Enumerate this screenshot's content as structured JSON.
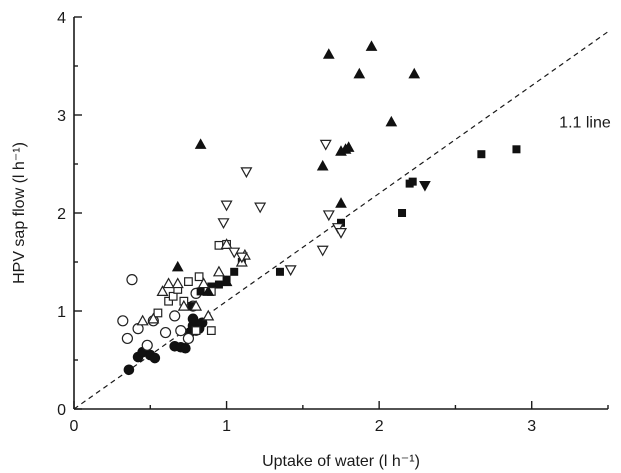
{
  "chart_data": {
    "type": "scatter",
    "title": "",
    "xlabel": "Uptake of water (l h⁻¹)",
    "ylabel": "HPV sap flow (l h⁻¹)",
    "xlim": [
      0,
      3.5
    ],
    "ylim": [
      0,
      4
    ],
    "x_ticks": [
      0,
      1,
      2,
      3
    ],
    "y_ticks": [
      0,
      1,
      2,
      3,
      4
    ],
    "x_minor_step": 0.5,
    "y_minor_step": 0.5,
    "grid": false,
    "reference_line": {
      "slope": 1.1,
      "label": "1.1 line"
    },
    "series": [
      {
        "marker": "filled-circle",
        "points": [
          [
            0.36,
            0.4
          ],
          [
            0.42,
            0.53
          ],
          [
            0.45,
            0.58
          ],
          [
            0.5,
            0.55
          ],
          [
            0.53,
            0.52
          ],
          [
            0.66,
            0.64
          ],
          [
            0.7,
            0.63
          ],
          [
            0.73,
            0.62
          ],
          [
            0.76,
            0.78
          ],
          [
            0.78,
            0.85
          ],
          [
            0.8,
            0.8
          ],
          [
            0.82,
            0.82
          ],
          [
            0.84,
            0.88
          ],
          [
            0.78,
            0.92
          ]
        ]
      },
      {
        "marker": "open-circle",
        "points": [
          [
            0.32,
            0.9
          ],
          [
            0.35,
            0.72
          ],
          [
            0.38,
            1.32
          ],
          [
            0.42,
            0.82
          ],
          [
            0.48,
            0.65
          ],
          [
            0.52,
            0.9
          ],
          [
            0.6,
            0.78
          ],
          [
            0.66,
            0.95
          ],
          [
            0.7,
            0.8
          ],
          [
            0.75,
            0.72
          ],
          [
            0.78,
            1.05
          ],
          [
            0.8,
            1.18
          ]
        ]
      },
      {
        "marker": "filled-square",
        "points": [
          [
            0.77,
            1.05
          ],
          [
            0.83,
            1.2
          ],
          [
            0.9,
            1.25
          ],
          [
            0.95,
            1.27
          ],
          [
            1.0,
            1.32
          ],
          [
            1.05,
            1.4
          ],
          [
            1.1,
            1.5
          ],
          [
            1.35,
            1.4
          ],
          [
            1.75,
            1.9
          ],
          [
            2.15,
            2.0
          ],
          [
            2.2,
            2.3
          ],
          [
            2.22,
            2.32
          ],
          [
            2.67,
            2.6
          ],
          [
            2.9,
            2.65
          ]
        ]
      },
      {
        "marker": "open-square",
        "points": [
          [
            0.55,
            0.98
          ],
          [
            0.62,
            1.1
          ],
          [
            0.65,
            1.15
          ],
          [
            0.68,
            1.22
          ],
          [
            0.72,
            1.1
          ],
          [
            0.75,
            1.3
          ],
          [
            0.82,
            1.35
          ],
          [
            0.9,
            1.2
          ],
          [
            0.95,
            1.67
          ],
          [
            1.0,
            1.68
          ],
          [
            0.8,
            0.8
          ],
          [
            0.9,
            0.8
          ]
        ]
      },
      {
        "marker": "filled-triangle-up",
        "points": [
          [
            0.68,
            1.45
          ],
          [
            0.88,
            1.2
          ],
          [
            1.0,
            1.3
          ],
          [
            0.83,
            2.7
          ],
          [
            1.63,
            2.48
          ],
          [
            1.67,
            3.62
          ],
          [
            1.75,
            2.1
          ],
          [
            1.75,
            2.63
          ],
          [
            1.78,
            2.65
          ],
          [
            1.8,
            2.67
          ],
          [
            1.87,
            3.42
          ],
          [
            1.95,
            3.7
          ],
          [
            2.08,
            2.93
          ],
          [
            2.23,
            3.42
          ]
        ]
      },
      {
        "marker": "open-triangle-up",
        "points": [
          [
            0.45,
            0.9
          ],
          [
            0.52,
            0.92
          ],
          [
            0.58,
            1.2
          ],
          [
            0.62,
            1.28
          ],
          [
            0.68,
            1.28
          ],
          [
            0.72,
            1.05
          ],
          [
            0.8,
            1.05
          ],
          [
            0.85,
            1.28
          ],
          [
            0.95,
            1.4
          ],
          [
            1.0,
            1.68
          ],
          [
            1.1,
            1.5
          ],
          [
            1.12,
            1.57
          ],
          [
            0.88,
            0.95
          ]
        ]
      },
      {
        "marker": "open-triangle-down",
        "points": [
          [
            0.98,
            1.9
          ],
          [
            1.0,
            2.08
          ],
          [
            1.05,
            1.6
          ],
          [
            1.1,
            1.55
          ],
          [
            1.13,
            2.42
          ],
          [
            1.22,
            2.06
          ],
          [
            1.42,
            1.42
          ],
          [
            1.63,
            1.62
          ],
          [
            1.65,
            2.7
          ],
          [
            1.67,
            1.98
          ],
          [
            1.73,
            1.85
          ],
          [
            1.75,
            1.8
          ]
        ]
      },
      {
        "marker": "filled-triangle-down",
        "points": [
          [
            2.3,
            2.28
          ]
        ]
      }
    ]
  }
}
